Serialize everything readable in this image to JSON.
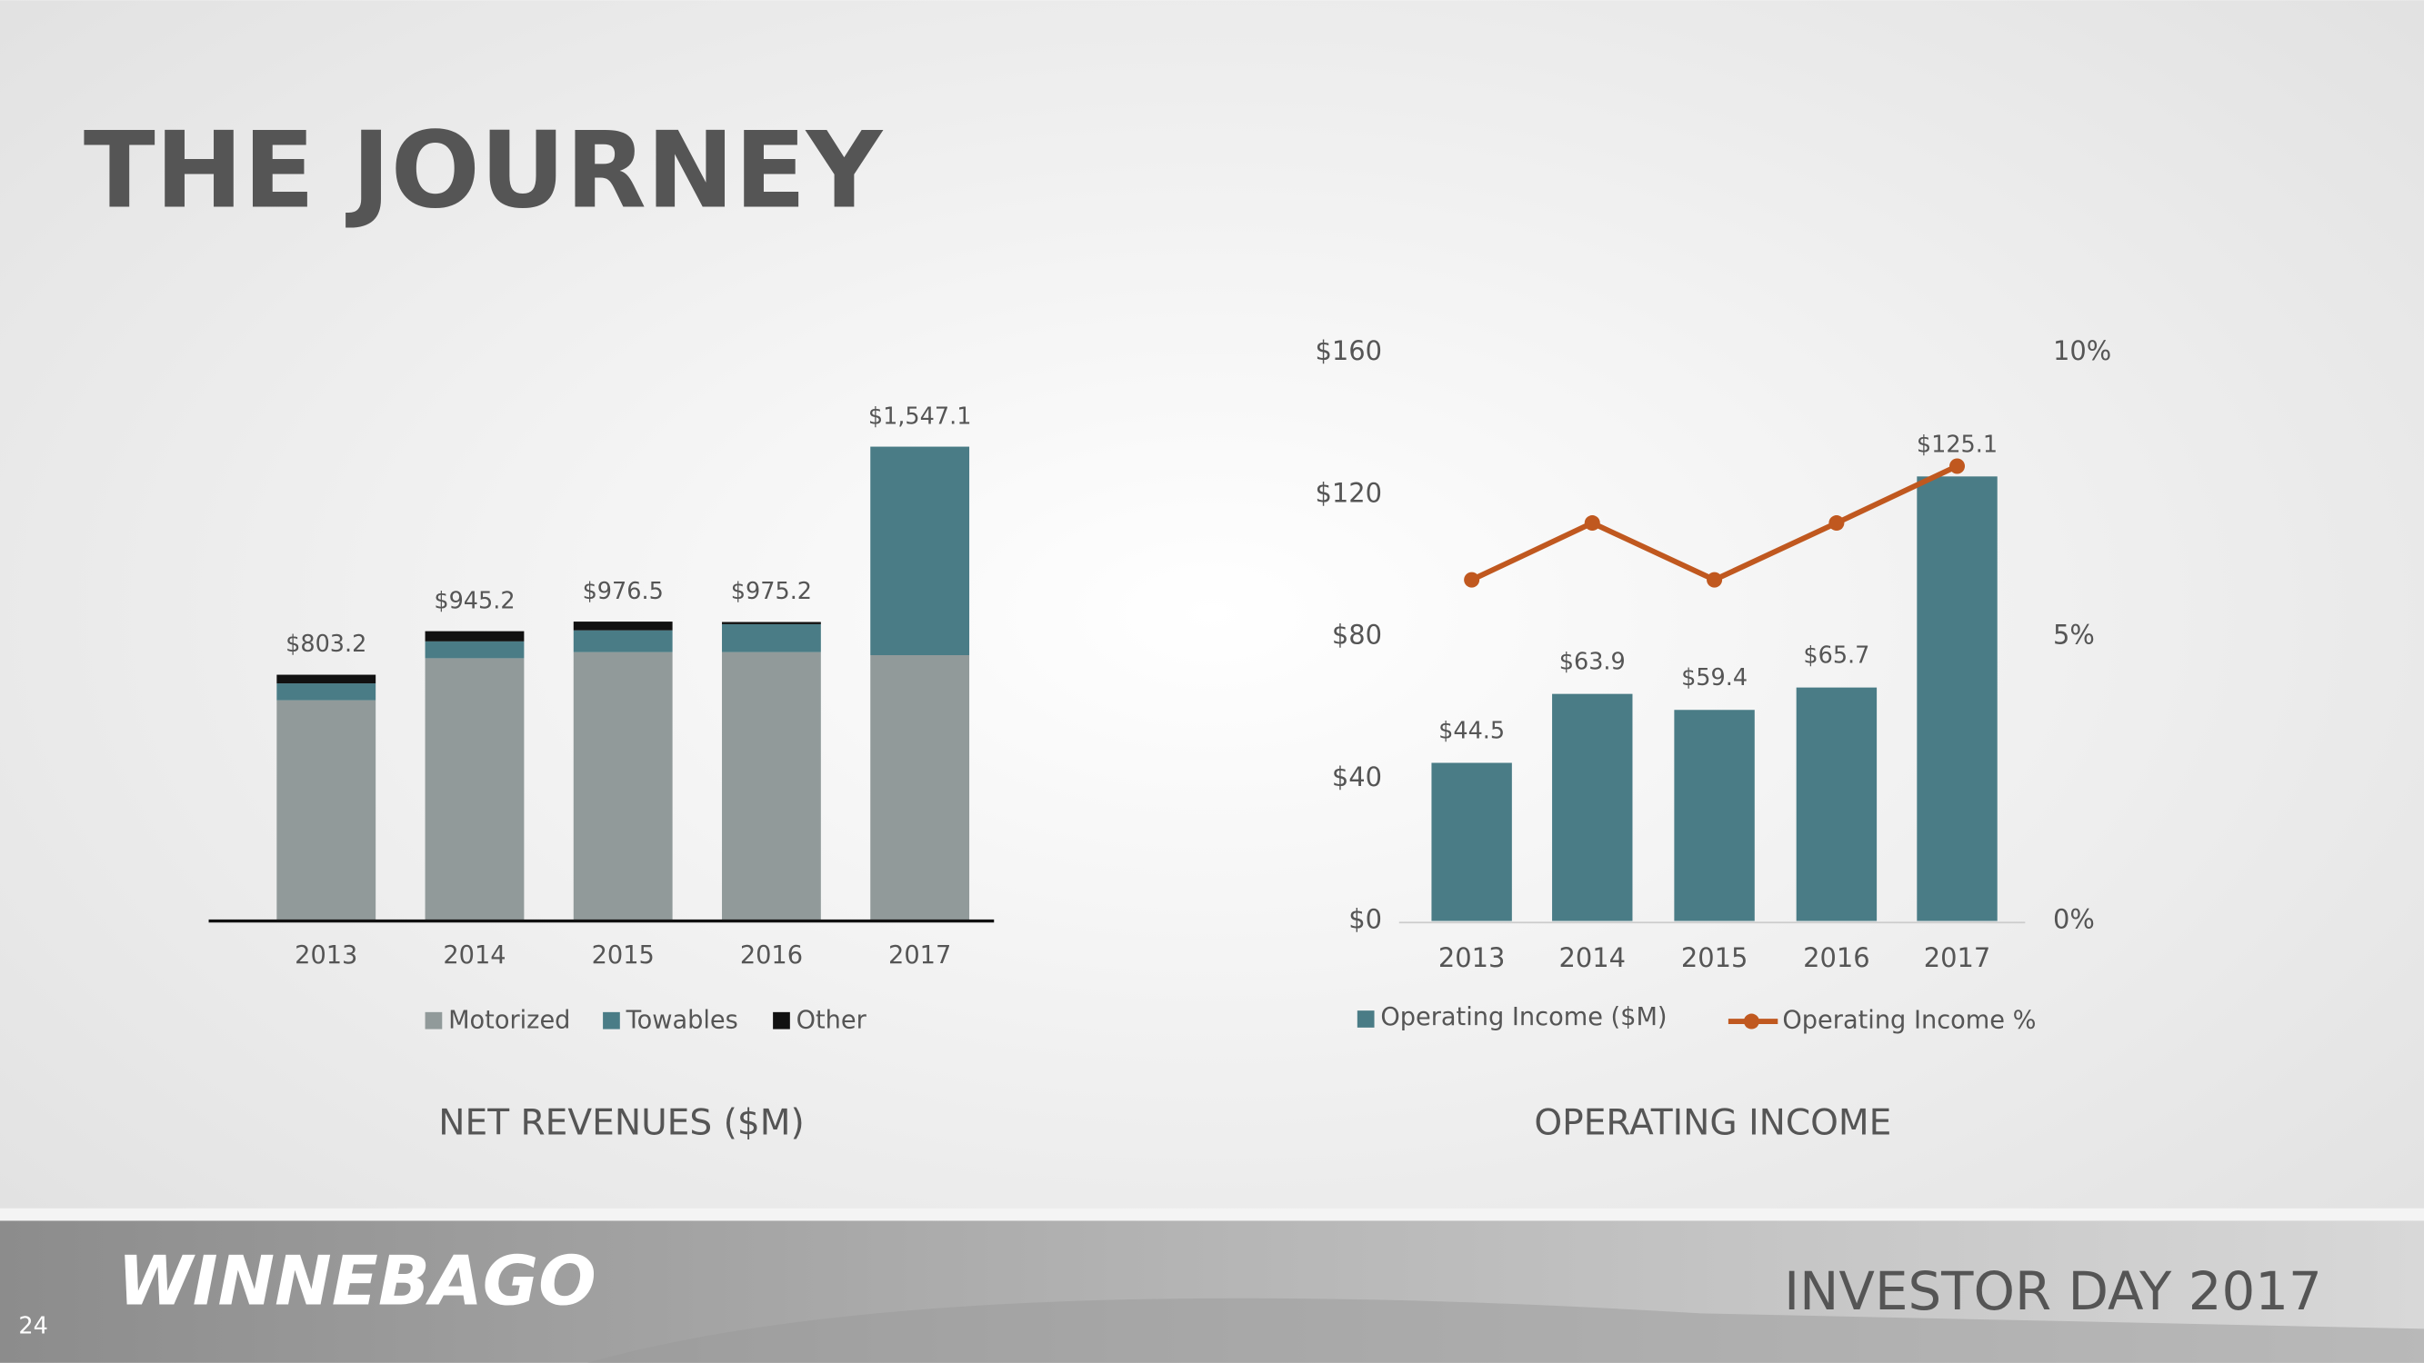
{
  "title": "THE JOURNEY",
  "chart_data": [
    {
      "type": "stacked-bar",
      "title": "NET REVENUES ($M)",
      "categories": [
        "2013",
        "2014",
        "2015",
        "2016",
        "2017"
      ],
      "series": [
        {
          "name": "Motorized",
          "color": "#919a9a",
          "values": [
            720,
            857,
            877,
            877,
            867
          ]
        },
        {
          "name": "Towables",
          "color": "#4a7c86",
          "values": [
            55,
            55,
            71,
            91,
            680.1
          ]
        },
        {
          "name": "Other",
          "color": "#111111",
          "values": [
            28.2,
            33.2,
            28.5,
            7.2,
            0
          ]
        }
      ],
      "totals": [
        803.2,
        945.2,
        976.5,
        975.2,
        1547.1
      ],
      "total_labels": [
        "$803.2",
        "$945.2",
        "$976.5",
        "$975.2",
        "$1,547.1"
      ],
      "ylim": [
        0,
        1600
      ]
    },
    {
      "type": "bar-line",
      "title": "OPERATING INCOME",
      "categories": [
        "2013",
        "2014",
        "2015",
        "2016",
        "2017"
      ],
      "series": [
        {
          "name": "Operating Income ($M)",
          "color": "#4a7c86",
          "values": [
            44.5,
            63.9,
            59.4,
            65.7,
            125.1
          ],
          "value_labels": [
            "$44.5",
            "$63.9",
            "$59.4",
            "$65.7",
            "$125.1"
          ]
        },
        {
          "name": "Operating Income %",
          "color": "#c0581f",
          "axis": "y2",
          "values": [
            6.0,
            7.0,
            6.0,
            7.0,
            8.0
          ]
        }
      ],
      "ylim": [
        0,
        160
      ],
      "yticks": [
        {
          "value": 0,
          "label": "$0"
        },
        {
          "value": 40,
          "label": "$40"
        },
        {
          "value": 80,
          "label": "$80"
        },
        {
          "value": 120,
          "label": "$120"
        },
        {
          "value": 160,
          "label": "$160"
        }
      ],
      "y2lim": [
        0,
        10
      ],
      "y2ticks": [
        {
          "value": 0,
          "label": "0%"
        },
        {
          "value": 5,
          "label": "5%"
        },
        {
          "value": 10,
          "label": "10%"
        }
      ]
    }
  ],
  "footer": {
    "page_number": "24",
    "logo": "WINNEBAGO",
    "event": "INVESTOR DAY 2017"
  }
}
